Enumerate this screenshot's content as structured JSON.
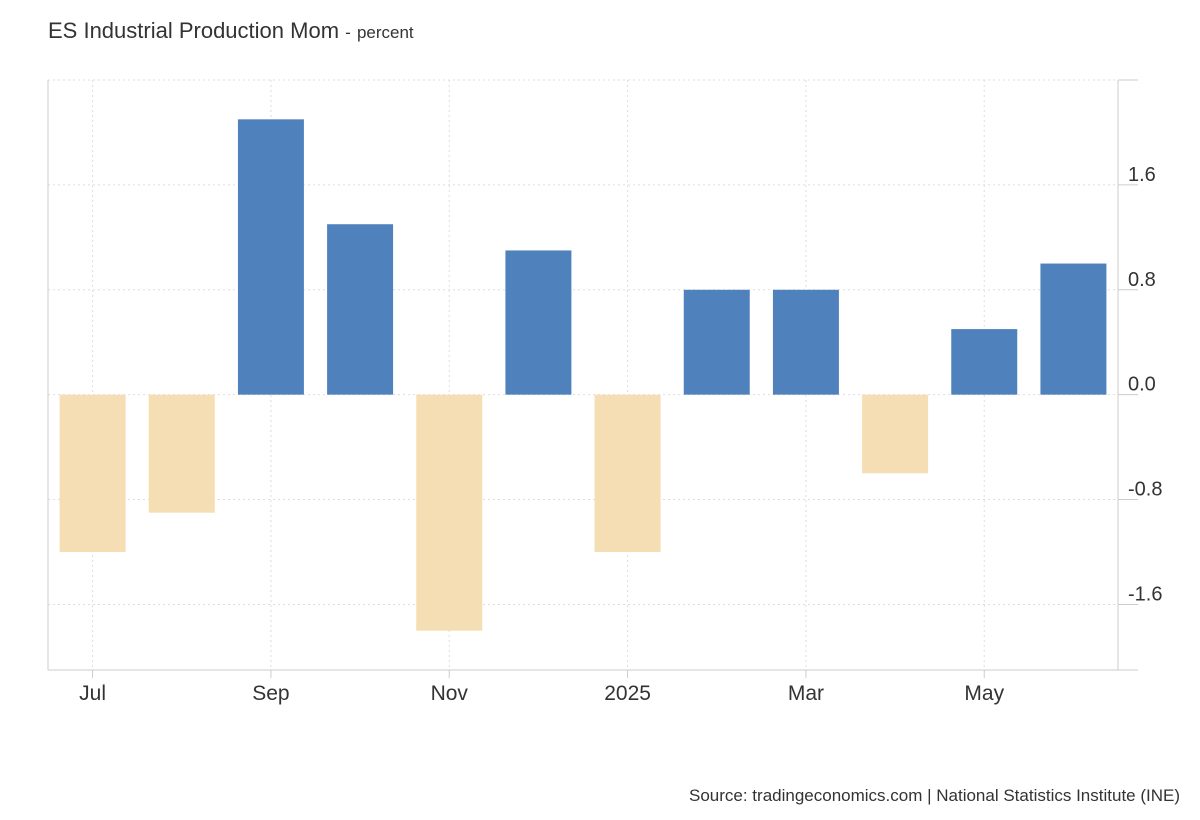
{
  "chart_data": {
    "type": "bar",
    "title": "ES Industrial Production Mom",
    "unit": "percent",
    "unit_separator": "-",
    "categories": [
      "2024-07",
      "2024-08",
      "2024-09",
      "2024-10",
      "2024-11",
      "2024-12",
      "2025-01",
      "2025-02",
      "2025-03",
      "2025-04",
      "2025-05",
      "2025-06"
    ],
    "values": [
      -1.2,
      -0.9,
      2.1,
      1.3,
      -1.8,
      1.1,
      -1.2,
      0.8,
      0.8,
      -0.6,
      0.5,
      1.0
    ],
    "x_tick_labels": [
      {
        "index": 0,
        "label": "Jul"
      },
      {
        "index": 2,
        "label": "Sep"
      },
      {
        "index": 4,
        "label": "Nov"
      },
      {
        "index": 6,
        "label": "2025"
      },
      {
        "index": 8,
        "label": "Mar"
      },
      {
        "index": 10,
        "label": "May"
      }
    ],
    "y_ticks": [
      1.6,
      0.8,
      0.0,
      -0.8,
      -1.6
    ],
    "y_tick_labels": [
      "1.6",
      "0.8",
      "0.0",
      "-0.8",
      "-1.6"
    ],
    "ylim": [
      -2.1,
      2.4
    ],
    "y_axis_side": "right",
    "grid": true,
    "colors": {
      "positive": "#4f81bd",
      "negative": "#f5deb3",
      "grid": "#dddddd",
      "axis": "#cccccc"
    }
  },
  "source": "Source: tradingeconomics.com | National Statistics Institute (INE)"
}
